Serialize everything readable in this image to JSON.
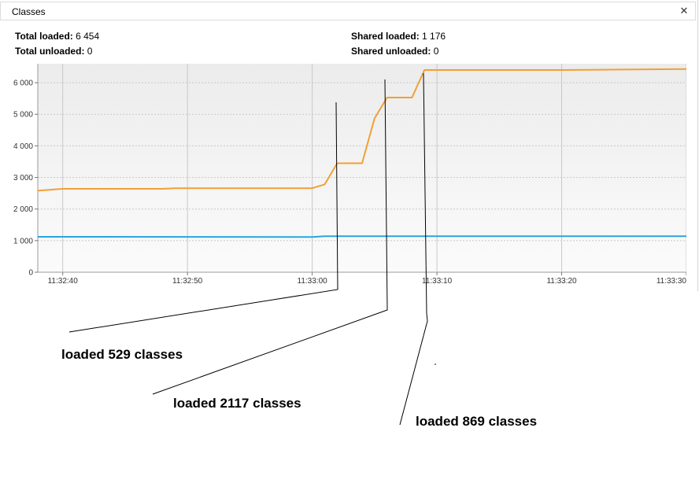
{
  "window": {
    "title": "Classes",
    "close_glyph": "✕"
  },
  "stats": {
    "total_loaded_label": "Total loaded:",
    "total_loaded_value": "6 454",
    "total_unloaded_label": "Total unloaded:",
    "total_unloaded_value": "0",
    "shared_loaded_label": "Shared loaded:",
    "shared_loaded_value": "1 176",
    "shared_unloaded_label": "Shared unloaded:",
    "shared_unloaded_value": "0"
  },
  "chart_data": {
    "type": "line",
    "x_ticks": [
      "11:32:40",
      "11:32:50",
      "11:33:00",
      "11:33:10",
      "11:33:20",
      "11:33:30"
    ],
    "y_ticks": [
      "0",
      "1 000",
      "2 000",
      "3 000",
      "4 000",
      "5 000",
      "6 000"
    ],
    "xlim": [
      "11:32:38",
      "11:33:30"
    ],
    "ylim": [
      0,
      6600
    ],
    "grid": true,
    "series": [
      {
        "color": "#f2a035",
        "points": [
          [
            "11:32:38",
            2580
          ],
          [
            "11:32:40",
            2640
          ],
          [
            "11:32:48",
            2640
          ],
          [
            "11:32:49",
            2660
          ],
          [
            "11:33:00",
            2660
          ],
          [
            "11:33:01",
            2780
          ],
          [
            "11:33:02",
            3450
          ],
          [
            "11:33:04",
            3450
          ],
          [
            "11:33:05",
            4870
          ],
          [
            "11:33:06",
            5530
          ],
          [
            "11:33:08",
            5530
          ],
          [
            "11:33:09",
            6400
          ],
          [
            "11:33:20",
            6400
          ],
          [
            "11:33:30",
            6430
          ]
        ]
      },
      {
        "color": "#2aa5dc",
        "points": [
          [
            "11:32:38",
            1120
          ],
          [
            "11:33:00",
            1115
          ],
          [
            "11:33:01",
            1140
          ],
          [
            "11:33:30",
            1140
          ]
        ]
      }
    ]
  },
  "annotations": [
    {
      "text": "loaded 529 classes"
    },
    {
      "text": "loaded 2117 classes"
    },
    {
      "text": "loaded 869 classes"
    }
  ]
}
